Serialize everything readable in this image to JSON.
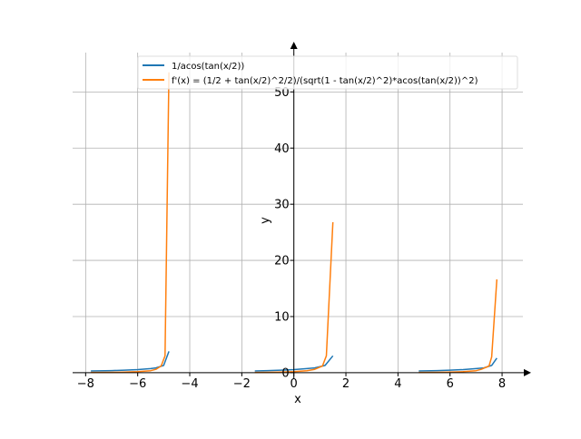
{
  "chart_data": {
    "type": "line",
    "xlabel": "x",
    "ylabel": "y",
    "xlim": [
      -8.5,
      8.8
    ],
    "ylim": [
      -0.5,
      57
    ],
    "xticks": [
      -8,
      -6,
      -4,
      -2,
      0,
      2,
      4,
      6,
      8
    ],
    "yticks": [
      0,
      10,
      20,
      30,
      40,
      50
    ],
    "xtick_labels": [
      "−8",
      "−6",
      "−4",
      "−2",
      "0",
      "2",
      "4",
      "6",
      "8"
    ],
    "ytick_labels": [
      "0",
      "10",
      "20",
      "30",
      "40",
      "50"
    ],
    "grid": true,
    "legend_position": "top-right",
    "series": [
      {
        "name": "1/acos(tan(x/2))",
        "color": "#1f77b4",
        "segments": [
          [
            [
              -7.8,
              0.3
            ],
            [
              -7.0,
              0.38
            ],
            [
              -6.5,
              0.45
            ],
            [
              -6.0,
              0.55
            ],
            [
              -5.5,
              0.72
            ],
            [
              -5.3,
              0.85
            ],
            [
              -5.0,
              1.3
            ],
            [
              -4.8,
              3.8
            ]
          ],
          [
            [
              -1.5,
              0.3
            ],
            [
              -1.0,
              0.38
            ],
            [
              -0.5,
              0.45
            ],
            [
              0.0,
              0.55
            ],
            [
              0.5,
              0.72
            ],
            [
              0.8,
              0.85
            ],
            [
              1.2,
              1.3
            ],
            [
              1.5,
              3.0
            ]
          ],
          [
            [
              4.8,
              0.3
            ],
            [
              5.5,
              0.38
            ],
            [
              6.0,
              0.45
            ],
            [
              6.5,
              0.55
            ],
            [
              7.0,
              0.72
            ],
            [
              7.3,
              0.85
            ],
            [
              7.6,
              1.3
            ],
            [
              7.8,
              2.6
            ]
          ]
        ]
      },
      {
        "name": "f'(x) = (1/2 + tan(x/2)^2/2)/(sqrt(1 - tan(x/2)^2)*acos(tan(x/2))^2)",
        "color": "#ff7f0e",
        "segments": [
          [
            [
              -7.8,
              0.05
            ],
            [
              -7.0,
              0.07
            ],
            [
              -6.5,
              0.1
            ],
            [
              -6.0,
              0.18
            ],
            [
              -5.5,
              0.35
            ],
            [
              -5.3,
              0.6
            ],
            [
              -5.1,
              1.2
            ],
            [
              -4.95,
              3.0
            ],
            [
              -4.8,
              53.5
            ]
          ],
          [
            [
              -1.5,
              0.05
            ],
            [
              -1.0,
              0.07
            ],
            [
              -0.5,
              0.1
            ],
            [
              0.0,
              0.18
            ],
            [
              0.5,
              0.35
            ],
            [
              0.8,
              0.6
            ],
            [
              1.1,
              1.2
            ],
            [
              1.25,
              3.0
            ],
            [
              1.5,
              26.8
            ]
          ],
          [
            [
              4.8,
              0.05
            ],
            [
              5.5,
              0.07
            ],
            [
              6.0,
              0.1
            ],
            [
              6.5,
              0.18
            ],
            [
              7.0,
              0.35
            ],
            [
              7.2,
              0.6
            ],
            [
              7.5,
              1.2
            ],
            [
              7.6,
              2.8
            ],
            [
              7.8,
              16.6
            ]
          ]
        ]
      }
    ]
  }
}
